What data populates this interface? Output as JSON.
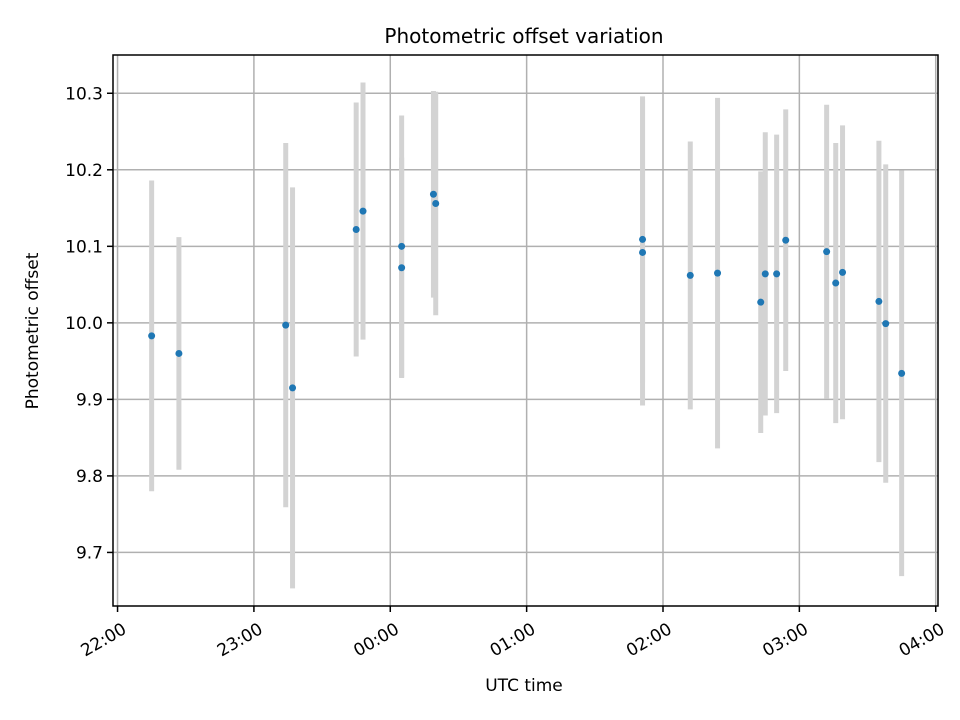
{
  "chart_data": {
    "type": "scatter",
    "title": "Photometric offset variation",
    "xlabel": "UTC time",
    "ylabel": "Photometric offset",
    "x_axis_type": "time",
    "xlim": [
      "21:58",
      "04:01"
    ],
    "ylim": [
      9.63,
      10.35
    ],
    "x_ticks": [
      "22:00",
      "23:00",
      "00:00",
      "01:00",
      "02:00",
      "03:00",
      "04:00"
    ],
    "x_tick_rotation_deg": 30,
    "y_ticks": [
      "9.7",
      "9.8",
      "9.9",
      "10.0",
      "10.1",
      "10.2",
      "10.3"
    ],
    "grid": true,
    "marker_color": "#1f77b4",
    "errorbar_color": "#d3d3d3",
    "points": [
      {
        "t": "22:15",
        "y": 9.983,
        "err": 0.203
      },
      {
        "t": "22:27",
        "y": 9.96,
        "err": 0.152
      },
      {
        "t": "23:14",
        "y": 9.997,
        "err": 0.238
      },
      {
        "t": "23:17",
        "y": 9.915,
        "err": 0.262
      },
      {
        "t": "23:45",
        "y": 10.122,
        "err": 0.166
      },
      {
        "t": "23:48",
        "y": 10.146,
        "err": 0.168
      },
      {
        "t": "00:05",
        "y": 10.1,
        "err": 0.171
      },
      {
        "t": "00:05",
        "y": 10.072,
        "err": 0.144
      },
      {
        "t": "00:19",
        "y": 10.168,
        "err": 0.135
      },
      {
        "t": "00:20",
        "y": 10.156,
        "err": 0.146
      },
      {
        "t": "01:51",
        "y": 10.092,
        "err": 0.2
      },
      {
        "t": "01:51",
        "y": 10.109,
        "err": 0.187
      },
      {
        "t": "02:12",
        "y": 10.062,
        "err": 0.175
      },
      {
        "t": "02:24",
        "y": 10.065,
        "err": 0.229
      },
      {
        "t": "02:43",
        "y": 10.027,
        "err": 0.171
      },
      {
        "t": "02:45",
        "y": 10.064,
        "err": 0.185
      },
      {
        "t": "02:50",
        "y": 10.064,
        "err": 0.182
      },
      {
        "t": "02:54",
        "y": 10.108,
        "err": 0.171
      },
      {
        "t": "03:12",
        "y": 10.093,
        "err": 0.192
      },
      {
        "t": "03:16",
        "y": 10.052,
        "err": 0.183
      },
      {
        "t": "03:19",
        "y": 10.066,
        "err": 0.192
      },
      {
        "t": "03:35",
        "y": 10.028,
        "err": 0.21
      },
      {
        "t": "03:38",
        "y": 9.999,
        "err": 0.208
      },
      {
        "t": "03:45",
        "y": 9.934,
        "err": 0.265
      }
    ]
  }
}
